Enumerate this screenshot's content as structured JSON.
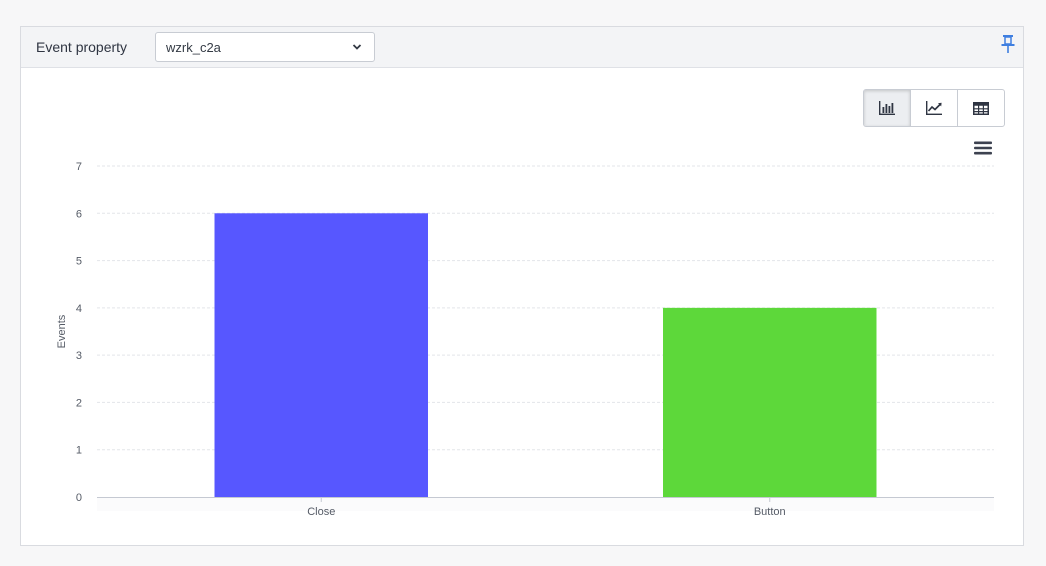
{
  "header": {
    "label": "Event property",
    "selected_property": "wzrk_c2a"
  },
  "view_options": [
    {
      "name": "bar-chart",
      "icon": "bar-chart-icon",
      "active": true
    },
    {
      "name": "line-chart",
      "icon": "line-chart-icon",
      "active": false
    },
    {
      "name": "table",
      "icon": "table-icon",
      "active": false
    }
  ],
  "colors": {
    "pin": "#3f7fe0",
    "grid": "#e3e5e9",
    "axis": "#c5c9d2"
  },
  "chart_data": {
    "type": "bar",
    "categories": [
      "Close",
      "Button"
    ],
    "values": [
      6,
      4
    ],
    "colors": [
      "#5757ff",
      "#5dd83a"
    ],
    "xlabel": "",
    "ylabel": "Events",
    "ylim": [
      0,
      7
    ],
    "yticks": [
      0,
      1,
      2,
      3,
      4,
      5,
      6,
      7
    ],
    "grid": true,
    "legend": "none"
  }
}
